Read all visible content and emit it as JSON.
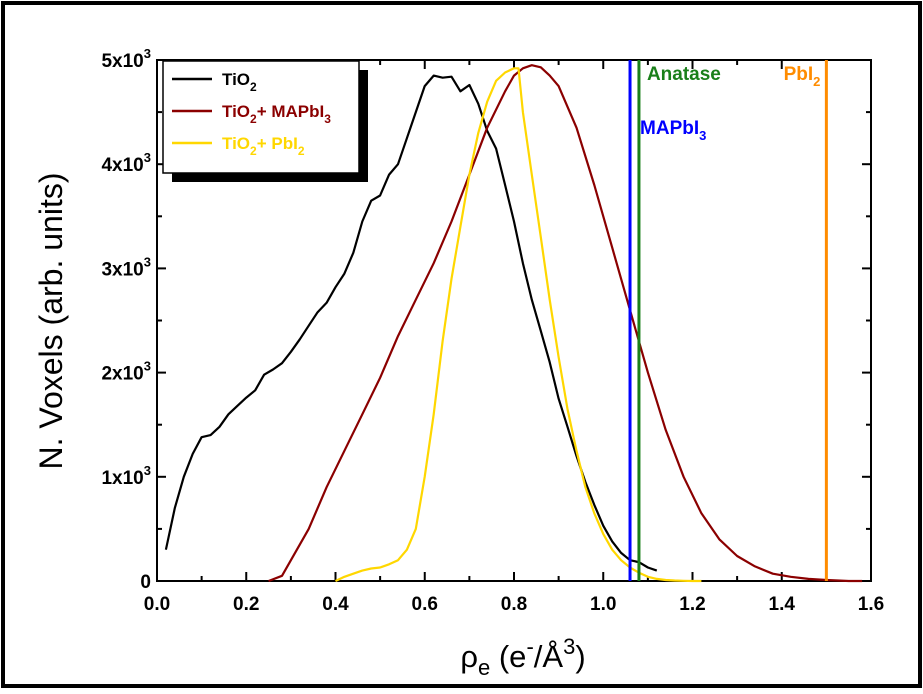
{
  "chart_data": {
    "type": "line",
    "xlabel": {
      "main": "ρ",
      "sub": "e",
      "rest": " (e",
      "sup1": "-",
      "mid": "/Å",
      "sup2": "3",
      "end": ")"
    },
    "ylabel": "N. Voxels (arb. units)",
    "xlim": [
      0.0,
      1.6
    ],
    "ylim": [
      0,
      5000
    ],
    "x_ticks": [
      {
        "v": 0.0,
        "label": "0.0"
      },
      {
        "v": 0.2,
        "label": "0.2"
      },
      {
        "v": 0.4,
        "label": "0.4"
      },
      {
        "v": 0.6,
        "label": "0.6"
      },
      {
        "v": 0.8,
        "label": "0.8"
      },
      {
        "v": 1.0,
        "label": "1.0"
      },
      {
        "v": 1.2,
        "label": "1.2"
      },
      {
        "v": 1.4,
        "label": "1.4"
      },
      {
        "v": 1.6,
        "label": "1.6"
      }
    ],
    "y_ticks": [
      {
        "v": 0,
        "label": "0"
      },
      {
        "v": 1000,
        "label": "1x10",
        "sup": "3"
      },
      {
        "v": 2000,
        "label": "2x10",
        "sup": "3"
      },
      {
        "v": 3000,
        "label": "3x10",
        "sup": "3"
      },
      {
        "v": 4000,
        "label": "4x10",
        "sup": "3"
      },
      {
        "v": 5000,
        "label": "5x10",
        "sup": "3"
      }
    ],
    "legend_position": "top-left",
    "series": [
      {
        "name": {
          "a": "TiO",
          "sub1": "2",
          "b": "",
          "sub2": ""
        },
        "color": "#000000",
        "x": [
          0.02,
          0.04,
          0.06,
          0.08,
          0.1,
          0.12,
          0.14,
          0.16,
          0.18,
          0.2,
          0.22,
          0.24,
          0.26,
          0.28,
          0.3,
          0.32,
          0.34,
          0.36,
          0.38,
          0.4,
          0.42,
          0.44,
          0.46,
          0.48,
          0.5,
          0.52,
          0.54,
          0.56,
          0.58,
          0.6,
          0.62,
          0.64,
          0.66,
          0.68,
          0.7,
          0.72,
          0.74,
          0.76,
          0.78,
          0.8,
          0.82,
          0.84,
          0.86,
          0.88,
          0.9,
          0.92,
          0.94,
          0.96,
          0.98,
          1.0,
          1.02,
          1.04,
          1.06,
          1.08,
          1.1,
          1.12
        ],
        "y": [
          300,
          700,
          1000,
          1220,
          1380,
          1400,
          1480,
          1600,
          1680,
          1760,
          1830,
          1980,
          2030,
          2090,
          2200,
          2320,
          2450,
          2580,
          2670,
          2820,
          2950,
          3150,
          3450,
          3650,
          3700,
          3900,
          4000,
          4250,
          4500,
          4750,
          4850,
          4830,
          4840,
          4700,
          4760,
          4580,
          4320,
          4150,
          3800,
          3450,
          3050,
          2700,
          2400,
          2100,
          1750,
          1480,
          1200,
          950,
          730,
          530,
          380,
          270,
          200,
          180,
          130,
          100
        ]
      },
      {
        "name": {
          "a": "TiO",
          "sub1": "2",
          "b": "+ MAPbI",
          "sub2": "3"
        },
        "color": "#8b0000",
        "x": [
          0.25,
          0.28,
          0.3,
          0.34,
          0.38,
          0.42,
          0.46,
          0.5,
          0.54,
          0.58,
          0.62,
          0.66,
          0.7,
          0.74,
          0.78,
          0.8,
          0.82,
          0.84,
          0.86,
          0.88,
          0.9,
          0.94,
          0.98,
          1.02,
          1.06,
          1.1,
          1.14,
          1.18,
          1.22,
          1.26,
          1.3,
          1.34,
          1.38,
          1.42,
          1.46,
          1.5,
          1.55,
          1.58
        ],
        "y": [
          0,
          50,
          200,
          500,
          900,
          1250,
          1600,
          1950,
          2350,
          2700,
          3050,
          3450,
          3900,
          4350,
          4700,
          4850,
          4920,
          4950,
          4930,
          4850,
          4750,
          4350,
          3800,
          3200,
          2600,
          2000,
          1450,
          1000,
          650,
          400,
          240,
          140,
          70,
          40,
          20,
          10,
          0,
          0
        ]
      },
      {
        "name": {
          "a": "TiO",
          "sub1": "2",
          "b": "+ PbI",
          "sub2": "2"
        },
        "color": "#ffd700",
        "x": [
          0.4,
          0.42,
          0.44,
          0.46,
          0.48,
          0.5,
          0.52,
          0.54,
          0.56,
          0.58,
          0.6,
          0.62,
          0.64,
          0.66,
          0.68,
          0.7,
          0.72,
          0.74,
          0.76,
          0.78,
          0.8,
          0.81,
          0.82,
          0.84,
          0.86,
          0.88,
          0.9,
          0.92,
          0.94,
          0.96,
          0.98,
          1.0,
          1.02,
          1.04,
          1.06,
          1.08,
          1.1,
          1.12,
          1.14,
          1.16,
          1.18,
          1.2,
          1.22
        ],
        "y": [
          0,
          40,
          70,
          100,
          120,
          130,
          160,
          200,
          300,
          500,
          1000,
          1600,
          2300,
          2900,
          3400,
          3900,
          4300,
          4600,
          4800,
          4880,
          4920,
          4920,
          4500,
          3900,
          3300,
          2700,
          2150,
          1650,
          1250,
          900,
          650,
          450,
          300,
          200,
          130,
          80,
          40,
          20,
          10,
          5,
          2,
          0,
          0
        ]
      }
    ],
    "reference_lines": [
      {
        "x": 1.06,
        "color": "#0000ff",
        "label": {
          "a": "MAPbI",
          "sub": "3"
        }
      },
      {
        "x": 1.08,
        "color": "#1a7f1a",
        "label": {
          "a": "Anatase",
          "sub": ""
        }
      },
      {
        "x": 1.5,
        "color": "#ff8c00",
        "label": {
          "a": "PbI",
          "sub": "2"
        }
      }
    ]
  }
}
